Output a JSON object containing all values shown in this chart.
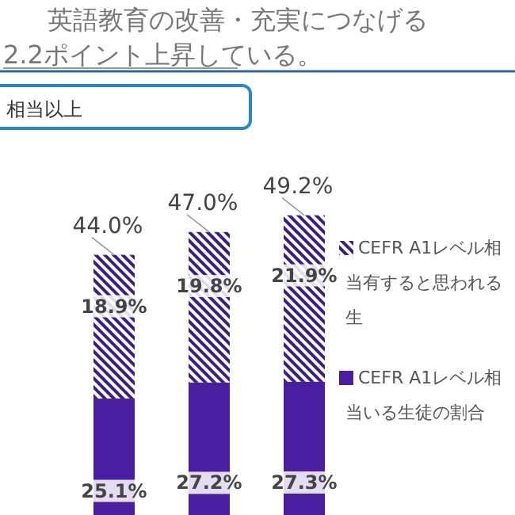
{
  "chart_data": {
    "type": "bar",
    "stacked": true,
    "categories": [
      null,
      null,
      null
    ],
    "series": [
      {
        "name": "CEFR A1レベル相当いる生徒の割合",
        "color": "#4a1e9e",
        "values": [
          25.1,
          27.2,
          27.3
        ],
        "value_labels": [
          "25.1%",
          "27.2%",
          "27.3%"
        ]
      },
      {
        "name": "CEFR A1レベル相当有すると思われる生",
        "color": "#3b1f80",
        "values": [
          18.9,
          19.8,
          21.9
        ],
        "value_labels": [
          "18.9%",
          "19.8%",
          "21.9%"
        ]
      }
    ],
    "totals": [
      "44.0%",
      "47.0%",
      "49.2%"
    ],
    "legend": "right",
    "annotations": [
      "英語教育の改善・充実につなげる",
      "2.2ポイント上昇している。",
      "相当以上"
    ]
  }
}
